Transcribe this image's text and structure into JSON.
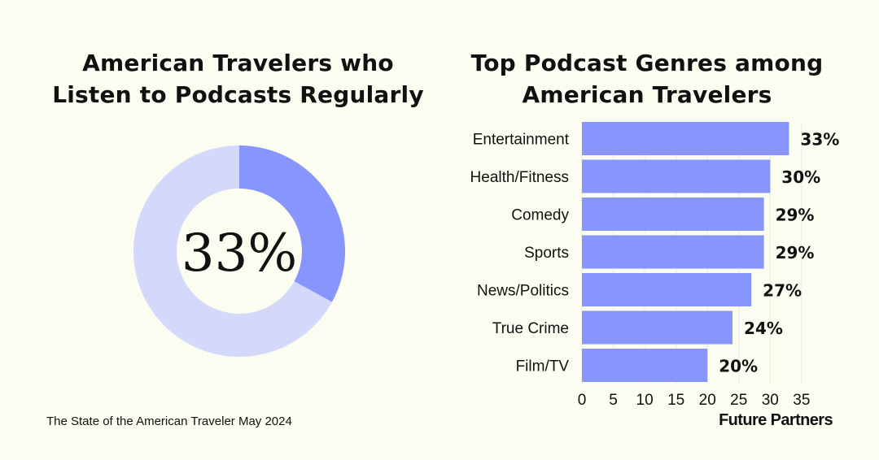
{
  "donut": {
    "title_line1": "American Travelers who",
    "title_line2": "Listen to Podcasts Regularly",
    "center_label": "33%"
  },
  "bars": {
    "title_line1": "Top Podcast Genres among",
    "title_line2": "American Travelers"
  },
  "footer": {
    "source": "The State of the American Traveler May 2024",
    "brand": "Future Partners"
  },
  "colors": {
    "background": "#fbfdf0",
    "bar": "#8795fc",
    "donut_highlight": "#8795fc",
    "donut_rest": "#d4d9fc",
    "text": "#111111"
  },
  "chart_data": [
    {
      "type": "pie",
      "title": "American Travelers who Listen to Podcasts Regularly",
      "style": "donut",
      "slices": [
        {
          "value": 33,
          "highlight": true
        },
        {
          "value": 67,
          "highlight": false
        }
      ],
      "center_label": "33%"
    },
    {
      "type": "bar",
      "orientation": "horizontal",
      "title": "Top Podcast Genres among American Travelers",
      "categories": [
        "Entertainment",
        "Health/Fitness",
        "Comedy",
        "Sports",
        "News/Politics",
        "True Crime",
        "Film/TV"
      ],
      "values": [
        33,
        30,
        29,
        29,
        27,
        24,
        20
      ],
      "value_labels": [
        "33%",
        "30%",
        "29%",
        "29%",
        "27%",
        "24%",
        "20%"
      ],
      "xlim": [
        0,
        35
      ],
      "xticks": [
        "0",
        "5",
        "10",
        "15",
        "20",
        "25",
        "30",
        "35"
      ],
      "grid": true
    }
  ]
}
